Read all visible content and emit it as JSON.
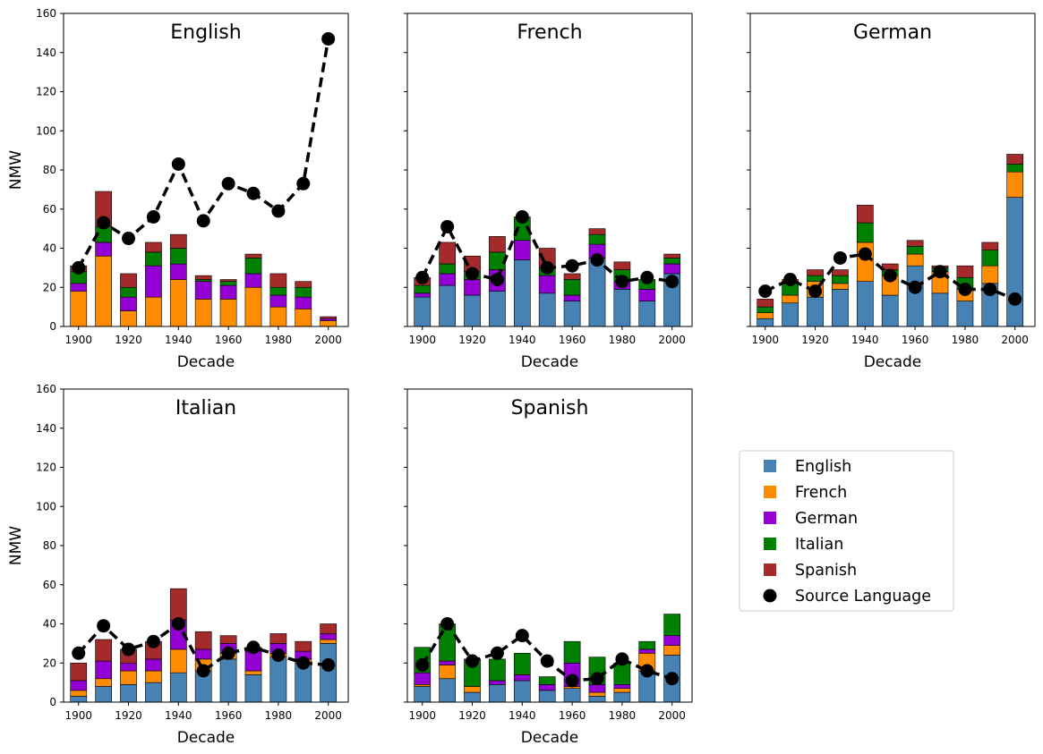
{
  "chart_data": {
    "type": "bar",
    "xlabel": "Decade",
    "ylabel": "NMW",
    "ylim": [
      0,
      160
    ],
    "yticks": [
      0,
      20,
      40,
      60,
      80,
      100,
      120,
      140,
      160
    ],
    "xticks": [
      1900,
      1920,
      1940,
      1960,
      1980,
      2000
    ],
    "decades": [
      1900,
      1910,
      1920,
      1930,
      1940,
      1950,
      1960,
      1970,
      1980,
      1990,
      2000
    ],
    "stack_order": [
      "English",
      "French",
      "German",
      "Italian",
      "Spanish"
    ],
    "colors": {
      "English": "#4682b4",
      "French": "#ff8c00",
      "German": "#9400d3",
      "Italian": "#008000",
      "Spanish": "#a52a2a",
      "Source Language": "#000000"
    },
    "legend": {
      "placement": "right",
      "entries": [
        "English",
        "French",
        "German",
        "Italian",
        "Spanish",
        "Source Language"
      ]
    },
    "panels": [
      {
        "title": "English",
        "stacks": {
          "English": [
            0,
            0,
            0,
            0,
            0,
            0,
            0,
            0,
            0,
            0,
            0
          ],
          "French": [
            18,
            36,
            8,
            15,
            24,
            14,
            14,
            20,
            10,
            9,
            3
          ],
          "German": [
            4,
            7,
            7,
            16,
            8,
            9,
            7,
            7,
            6,
            6,
            1
          ],
          "Italian": [
            6,
            8,
            5,
            7,
            8,
            1,
            2,
            8,
            4,
            5,
            0
          ],
          "Spanish": [
            3,
            18,
            7,
            5,
            7,
            2,
            1,
            2,
            7,
            3,
            1
          ]
        },
        "source_language": [
          30,
          53,
          45,
          56,
          83,
          54,
          73,
          68,
          59,
          73,
          147
        ]
      },
      {
        "title": "French",
        "stacks": {
          "English": [
            15,
            21,
            16,
            18,
            34,
            17,
            13,
            35,
            19,
            13,
            27
          ],
          "French": [
            0,
            0,
            0,
            0,
            0,
            0,
            0,
            0,
            0,
            0,
            0
          ],
          "German": [
            2,
            6,
            8,
            11,
            10,
            9,
            3,
            7,
            4,
            6,
            5
          ],
          "Italian": [
            4,
            5,
            4,
            9,
            12,
            4,
            8,
            5,
            6,
            5,
            3
          ],
          "Spanish": [
            4,
            11,
            8,
            8,
            0,
            10,
            3,
            3,
            4,
            0,
            2
          ]
        },
        "source_language": [
          25,
          51,
          27,
          24,
          56,
          30,
          31,
          34,
          23,
          25,
          23
        ]
      },
      {
        "title": "German",
        "stacks": {
          "English": [
            4,
            12,
            15,
            19,
            23,
            16,
            31,
            17,
            13,
            22,
            66
          ],
          "French": [
            3,
            4,
            8,
            3,
            20,
            10,
            6,
            11,
            6,
            9,
            13
          ],
          "German": [
            0,
            0,
            0,
            0,
            0,
            0,
            0,
            0,
            0,
            0,
            0
          ],
          "Italian": [
            3,
            6,
            3,
            4,
            10,
            3,
            4,
            2,
            6,
            8,
            4
          ],
          "Spanish": [
            4,
            2,
            3,
            3,
            9,
            3,
            3,
            1,
            6,
            4,
            5
          ]
        },
        "source_language": [
          18,
          24,
          18,
          35,
          37,
          26,
          20,
          28,
          19,
          19,
          14
        ]
      },
      {
        "title": "Italian",
        "stacks": {
          "English": [
            3,
            8,
            9,
            10,
            15,
            16,
            22,
            14,
            23,
            20,
            30
          ],
          "French": [
            3,
            4,
            7,
            6,
            12,
            6,
            3,
            2,
            2,
            2,
            2
          ],
          "German": [
            5,
            9,
            4,
            6,
            15,
            5,
            5,
            10,
            5,
            4,
            3
          ],
          "Italian": [
            0,
            0,
            0,
            0,
            0,
            0,
            0,
            0,
            0,
            0,
            0
          ],
          "Spanish": [
            9,
            11,
            7,
            9,
            16,
            9,
            4,
            2,
            5,
            5,
            5
          ]
        },
        "source_language": [
          25,
          39,
          27,
          31,
          40,
          16,
          25,
          28,
          24,
          20,
          19
        ]
      },
      {
        "title": "Spanish",
        "stacks": {
          "English": [
            8,
            12,
            5,
            9,
            11,
            6,
            7,
            3,
            5,
            16,
            24
          ],
          "French": [
            1,
            7,
            3,
            0,
            0,
            0,
            1,
            2,
            2,
            9,
            5
          ],
          "German": [
            6,
            2,
            0,
            2,
            3,
            3,
            12,
            4,
            2,
            2,
            5
          ],
          "Italian": [
            13,
            19,
            14,
            11,
            11,
            4,
            11,
            14,
            11,
            4,
            11
          ],
          "Spanish": [
            0,
            0,
            0,
            0,
            0,
            0,
            0,
            0,
            0,
            0,
            0
          ]
        },
        "source_language": [
          19,
          40,
          21,
          25,
          34,
          21,
          11,
          12,
          22,
          16,
          12
        ]
      }
    ]
  }
}
